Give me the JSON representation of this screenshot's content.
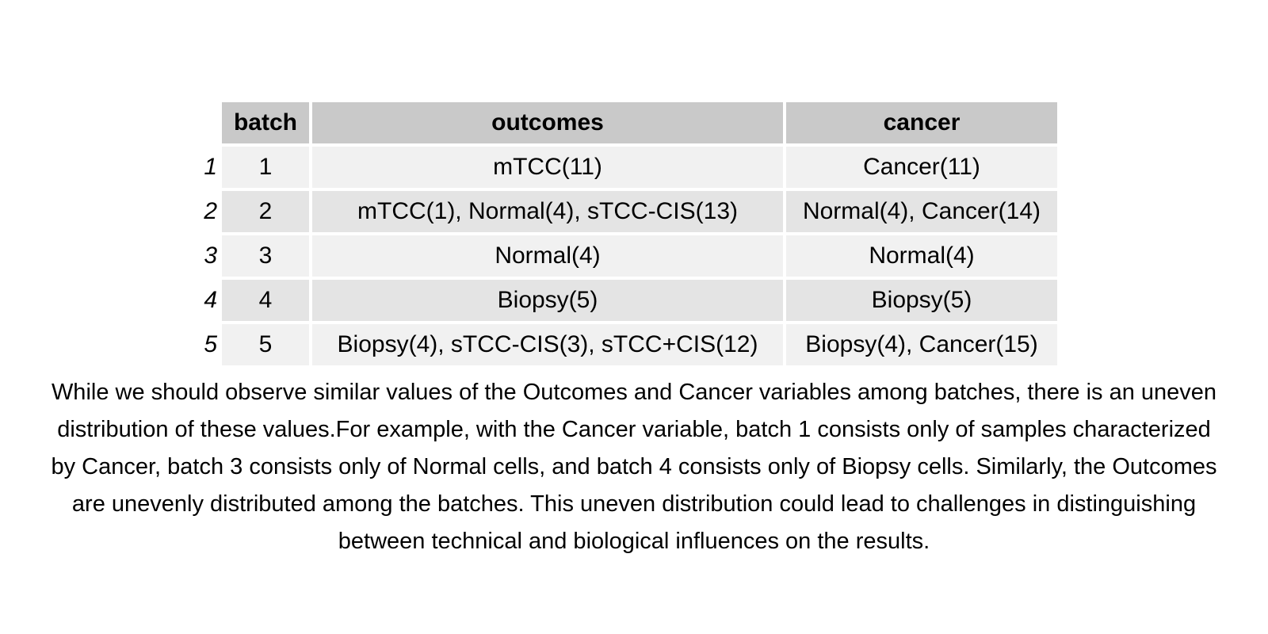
{
  "table": {
    "headers": {
      "rowname": "",
      "batch": "batch",
      "outcomes": "outcomes",
      "cancer": "cancer"
    },
    "rows": [
      {
        "rowname": "1",
        "batch": "1",
        "outcomes": "mTCC(11)",
        "cancer": "Cancer(11)"
      },
      {
        "rowname": "2",
        "batch": "2",
        "outcomes": "mTCC(1), Normal(4), sTCC-CIS(13)",
        "cancer": "Normal(4), Cancer(14)"
      },
      {
        "rowname": "3",
        "batch": "3",
        "outcomes": "Normal(4)",
        "cancer": "Normal(4)"
      },
      {
        "rowname": "4",
        "batch": "4",
        "outcomes": "Biopsy(5)",
        "cancer": "Biopsy(5)"
      },
      {
        "rowname": "5",
        "batch": "5",
        "outcomes": "Biopsy(4), sTCC-CIS(3), sTCC+CIS(12)",
        "cancer": "Biopsy(4), Cancer(15)"
      }
    ]
  },
  "caption": "While we should observe similar values of the Outcomes and Cancer variables among batches, there is an uneven distribution of these values.For example, with the Cancer variable, batch 1 consists only of samples characterized by Cancer, batch 3 consists only of Normal cells, and batch 4 consists only of Biopsy cells. Similarly, the Outcomes are unevenly distributed among the batches. This uneven distribution could lead to challenges in distinguishing between technical and biological influences on the results.",
  "colors": {
    "header_bg": "#c9c9c9",
    "row_odd_bg": "#f1f1f1",
    "row_even_bg": "#e4e4e4"
  }
}
